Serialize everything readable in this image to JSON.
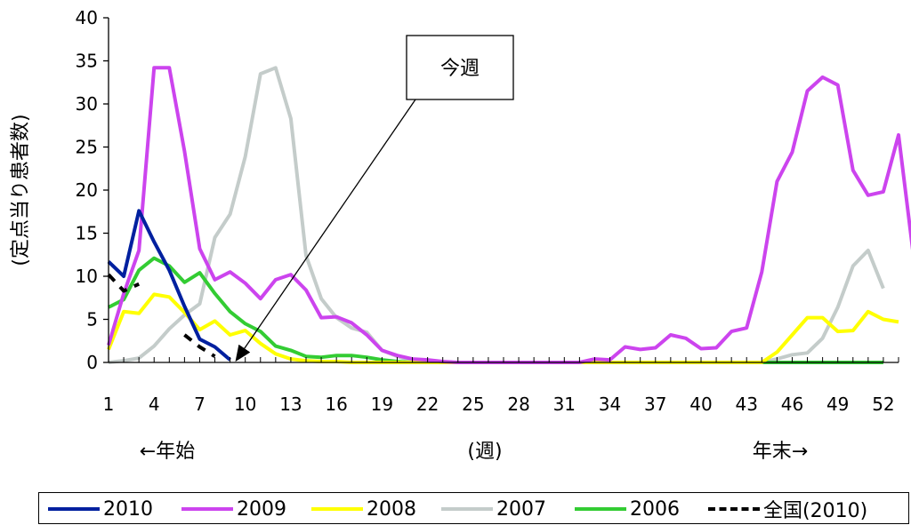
{
  "chart_data": {
    "type": "line",
    "xlabel": "(週)",
    "ylabel": "(定点当り患者数)",
    "x_note_left": "←年始",
    "x_note_right": "年末→",
    "annotation": "今週",
    "ylim": [
      0,
      40
    ],
    "yticks": [
      0,
      5,
      10,
      15,
      20,
      25,
      30,
      35,
      40
    ],
    "xlim": [
      1,
      53
    ],
    "xtick_labels": [
      "1",
      "4",
      "7",
      "10",
      "13",
      "16",
      "19",
      "22",
      "25",
      "28",
      "31",
      "34",
      "37",
      "40",
      "43",
      "46",
      "49",
      "52"
    ],
    "series": [
      {
        "name": "2010",
        "color": "#00209f",
        "dash": false,
        "values": [
          11.7,
          10,
          17.6,
          14,
          10.7,
          6.5,
          2.7,
          1.8,
          0.3
        ]
      },
      {
        "name": "2009",
        "color": "#cc44ee",
        "dash": false,
        "values": [
          2,
          8,
          13,
          34.2,
          34.2,
          24.5,
          13.2,
          9.6,
          10.5,
          9.2,
          7.4,
          9.6,
          10.2,
          8.4,
          5.2,
          5.3,
          4.6,
          3.2,
          1.4,
          0.8,
          0.4,
          0.3,
          0.1,
          0,
          0,
          0,
          0,
          0,
          0,
          0,
          0,
          0,
          0.4,
          0.3,
          1.8,
          1.5,
          1.7,
          3.2,
          2.8,
          1.6,
          1.7,
          3.6,
          4,
          10.5,
          21,
          24.4,
          31.5,
          33.1,
          32.2,
          22.3,
          19.4,
          19.8,
          26.4,
          12.1
        ]
      },
      {
        "name": "2008",
        "color": "#ffff00",
        "dash": false,
        "values": [
          1.5,
          5.9,
          5.7,
          7.9,
          7.6,
          5.8,
          3.8,
          4.8,
          3.2,
          3.7,
          2.2,
          1,
          0.4,
          0.2,
          0.1,
          0.1,
          0,
          0,
          0,
          0,
          0,
          0,
          0,
          0,
          0,
          0,
          0,
          0,
          0,
          0,
          0,
          0,
          0,
          0,
          0,
          0,
          0,
          0,
          0,
          0,
          0,
          0,
          0,
          0,
          1.2,
          3.2,
          5.2,
          5.2,
          3.6,
          3.7,
          5.9,
          5,
          4.7
        ]
      },
      {
        "name": "2007",
        "color": "#c4ccca",
        "dash": false,
        "values": [
          0,
          0.2,
          0.5,
          1.9,
          3.9,
          5.5,
          6.8,
          14.5,
          17.2,
          23.9,
          33.5,
          34.2,
          28.3,
          12.4,
          7.4,
          5.2,
          4,
          3.5,
          1.4,
          0.7,
          0.2,
          0.1,
          0,
          0,
          0,
          0,
          0,
          0,
          0,
          0,
          0,
          0,
          0,
          0,
          0,
          0,
          0,
          0,
          0,
          0,
          0,
          0,
          0,
          0,
          0.4,
          0.9,
          1.1,
          2.8,
          6.4,
          11.2,
          13,
          8.6
        ]
      },
      {
        "name": "2006",
        "color": "#33cc33",
        "dash": false,
        "values": [
          6.4,
          7.3,
          10.7,
          12.1,
          11.2,
          9.3,
          10.4,
          8,
          5.9,
          4.5,
          3.6,
          1.9,
          1.4,
          0.7,
          0.6,
          0.8,
          0.8,
          0.6,
          0.3,
          0.1,
          0,
          0,
          0,
          0,
          0,
          0,
          0,
          0,
          0,
          0,
          0,
          0,
          0,
          0,
          0,
          0,
          0,
          0,
          0,
          0,
          0,
          0,
          0,
          0,
          0,
          0,
          0,
          0,
          0,
          0,
          0,
          0
        ]
      },
      {
        "name": "全国(2010)",
        "color": "#000000",
        "dash": true,
        "values": [
          10.2,
          8.3,
          9.1,
          null,
          null,
          3.2,
          1.8,
          0.7
        ]
      }
    ]
  }
}
